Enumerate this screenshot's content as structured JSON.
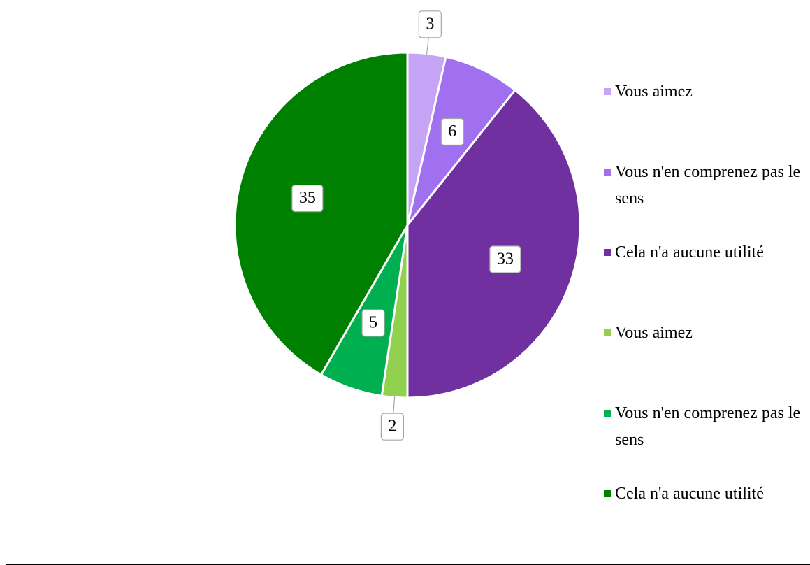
{
  "chart_data": {
    "type": "pie",
    "categories": [
      "Vous aimez",
      "Vous n'en comprenez pas le sens",
      "Cela n'a aucune utilité",
      "Vous aimez",
      "Vous n'en comprenez pas le sens",
      "Cela n'a aucune utilité"
    ],
    "values": [
      3,
      6,
      33,
      2,
      5,
      35
    ],
    "colors": [
      "#c5a3f5",
      "#a070f0",
      "#7030a0",
      "#92d050",
      "#00b050",
      "#008000"
    ],
    "legend": "right"
  }
}
